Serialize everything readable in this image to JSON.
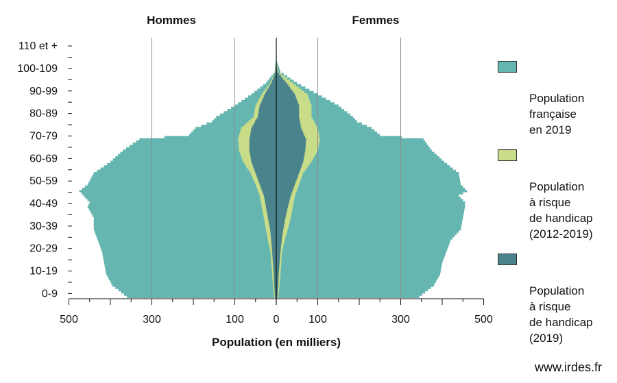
{
  "chart_data": {
    "type": "population-pyramid",
    "panel_titles": {
      "left": "Hommes",
      "right": "Femmes"
    },
    "xlabel": "Population (en milliers)",
    "x_ticks": [
      {
        "value": -500,
        "label": "500"
      },
      {
        "value": -300,
        "label": "300"
      },
      {
        "value": -100,
        "label": "100"
      },
      {
        "value": 0,
        "label": "0"
      },
      {
        "value": 100,
        "label": "100"
      },
      {
        "value": 300,
        "label": "300"
      },
      {
        "value": 500,
        "label": "500"
      }
    ],
    "xlim": [
      -500,
      500
    ],
    "ylim": [
      0,
      115
    ],
    "y_ticks": [
      {
        "value": 0,
        "label": "0-9"
      },
      {
        "value": 10,
        "label": "10-19"
      },
      {
        "value": 20,
        "label": "20-29"
      },
      {
        "value": 30,
        "label": "30-39"
      },
      {
        "value": 40,
        "label": "40-49"
      },
      {
        "value": 50,
        "label": "50-59"
      },
      {
        "value": 60,
        "label": "60-69"
      },
      {
        "value": 70,
        "label": "70-79"
      },
      {
        "value": 80,
        "label": "80-89"
      },
      {
        "value": 90,
        "label": "90-99"
      },
      {
        "value": 100,
        "label": "100-109"
      },
      {
        "value": 110,
        "label": "110 et +"
      }
    ],
    "gridlines_x": [
      -300,
      -100,
      100,
      300
    ],
    "series": [
      {
        "name": "Population française en 2019",
        "color": "#65b6b0",
        "men": [
          {
            "age": 0,
            "value": 360
          },
          {
            "age": 5,
            "value": 395
          },
          {
            "age": 10,
            "value": 410
          },
          {
            "age": 15,
            "value": 415
          },
          {
            "age": 20,
            "value": 420
          },
          {
            "age": 25,
            "value": 430
          },
          {
            "age": 30,
            "value": 440
          },
          {
            "age": 35,
            "value": 440
          },
          {
            "age": 40,
            "value": 455
          },
          {
            "age": 42,
            "value": 450
          },
          {
            "age": 45,
            "value": 465
          },
          {
            "age": 47,
            "value": 475
          },
          {
            "age": 50,
            "value": 455
          },
          {
            "age": 55,
            "value": 440
          },
          {
            "age": 60,
            "value": 400
          },
          {
            "age": 65,
            "value": 370
          },
          {
            "age": 70,
            "value": 330
          },
          {
            "age": 72,
            "value": 210
          },
          {
            "age": 75,
            "value": 195
          },
          {
            "age": 78,
            "value": 155
          },
          {
            "age": 80,
            "value": 145
          },
          {
            "age": 85,
            "value": 100
          },
          {
            "age": 90,
            "value": 60
          },
          {
            "age": 95,
            "value": 25
          },
          {
            "age": 100,
            "value": 4
          },
          {
            "age": 105,
            "value": 1
          },
          {
            "age": 110,
            "value": 0.5
          }
        ],
        "women": [
          {
            "age": 0,
            "value": 345
          },
          {
            "age": 5,
            "value": 380
          },
          {
            "age": 10,
            "value": 395
          },
          {
            "age": 15,
            "value": 400
          },
          {
            "age": 20,
            "value": 410
          },
          {
            "age": 25,
            "value": 420
          },
          {
            "age": 30,
            "value": 445
          },
          {
            "age": 35,
            "value": 450
          },
          {
            "age": 40,
            "value": 455
          },
          {
            "age": 42,
            "value": 455
          },
          {
            "age": 45,
            "value": 440
          },
          {
            "age": 47,
            "value": 460
          },
          {
            "age": 50,
            "value": 445
          },
          {
            "age": 55,
            "value": 440
          },
          {
            "age": 60,
            "value": 405
          },
          {
            "age": 65,
            "value": 375
          },
          {
            "age": 70,
            "value": 355
          },
          {
            "age": 72,
            "value": 250
          },
          {
            "age": 75,
            "value": 230
          },
          {
            "age": 78,
            "value": 195
          },
          {
            "age": 80,
            "value": 185
          },
          {
            "age": 85,
            "value": 150
          },
          {
            "age": 90,
            "value": 100
          },
          {
            "age": 95,
            "value": 50
          },
          {
            "age": 100,
            "value": 10
          },
          {
            "age": 105,
            "value": 1.5
          },
          {
            "age": 110,
            "value": 0.5
          }
        ]
      },
      {
        "name": "Population à risque de handicap (2012-2019)",
        "color": "#c9dd89",
        "men": [
          {
            "age": 0,
            "value": 5
          },
          {
            "age": 5,
            "value": 8
          },
          {
            "age": 10,
            "value": 10
          },
          {
            "age": 15,
            "value": 12
          },
          {
            "age": 20,
            "value": 14
          },
          {
            "age": 25,
            "value": 20
          },
          {
            "age": 30,
            "value": 25
          },
          {
            "age": 35,
            "value": 30
          },
          {
            "age": 40,
            "value": 35
          },
          {
            "age": 45,
            "value": 40
          },
          {
            "age": 50,
            "value": 50
          },
          {
            "age": 55,
            "value": 62
          },
          {
            "age": 60,
            "value": 80
          },
          {
            "age": 65,
            "value": 90
          },
          {
            "age": 70,
            "value": 92
          },
          {
            "age": 75,
            "value": 85
          },
          {
            "age": 80,
            "value": 55
          },
          {
            "age": 85,
            "value": 50
          },
          {
            "age": 90,
            "value": 35
          },
          {
            "age": 95,
            "value": 15
          },
          {
            "age": 100,
            "value": 3
          },
          {
            "age": 105,
            "value": 0.5
          },
          {
            "age": 110,
            "value": 0.2
          }
        ],
        "women": [
          {
            "age": 0,
            "value": 5
          },
          {
            "age": 5,
            "value": 8
          },
          {
            "age": 10,
            "value": 10
          },
          {
            "age": 15,
            "value": 12
          },
          {
            "age": 20,
            "value": 14
          },
          {
            "age": 25,
            "value": 20
          },
          {
            "age": 30,
            "value": 28
          },
          {
            "age": 35,
            "value": 35
          },
          {
            "age": 40,
            "value": 40
          },
          {
            "age": 45,
            "value": 45
          },
          {
            "age": 50,
            "value": 55
          },
          {
            "age": 55,
            "value": 65
          },
          {
            "age": 60,
            "value": 85
          },
          {
            "age": 65,
            "value": 100
          },
          {
            "age": 70,
            "value": 105
          },
          {
            "age": 75,
            "value": 100
          },
          {
            "age": 80,
            "value": 85
          },
          {
            "age": 85,
            "value": 85
          },
          {
            "age": 90,
            "value": 75
          },
          {
            "age": 95,
            "value": 40
          },
          {
            "age": 100,
            "value": 5
          },
          {
            "age": 105,
            "value": 1
          },
          {
            "age": 110,
            "value": 0.2
          }
        ]
      },
      {
        "name": "Population à risque de handicap (2019)",
        "color": "#4a838c",
        "men": [
          {
            "age": 0,
            "value": 3
          },
          {
            "age": 5,
            "value": 5
          },
          {
            "age": 10,
            "value": 6
          },
          {
            "age": 15,
            "value": 8
          },
          {
            "age": 20,
            "value": 10
          },
          {
            "age": 25,
            "value": 12
          },
          {
            "age": 30,
            "value": 15
          },
          {
            "age": 35,
            "value": 20
          },
          {
            "age": 40,
            "value": 25
          },
          {
            "age": 45,
            "value": 30
          },
          {
            "age": 50,
            "value": 40
          },
          {
            "age": 55,
            "value": 50
          },
          {
            "age": 60,
            "value": 60
          },
          {
            "age": 65,
            "value": 65
          },
          {
            "age": 70,
            "value": 65
          },
          {
            "age": 75,
            "value": 60
          },
          {
            "age": 80,
            "value": 45
          },
          {
            "age": 85,
            "value": 40
          },
          {
            "age": 90,
            "value": 28
          },
          {
            "age": 95,
            "value": 12
          },
          {
            "age": 100,
            "value": 2
          },
          {
            "age": 105,
            "value": 0.5
          },
          {
            "age": 110,
            "value": 0.2
          }
        ],
        "women": [
          {
            "age": 0,
            "value": 3
          },
          {
            "age": 5,
            "value": 5
          },
          {
            "age": 10,
            "value": 6
          },
          {
            "age": 15,
            "value": 8
          },
          {
            "age": 20,
            "value": 10
          },
          {
            "age": 25,
            "value": 13
          },
          {
            "age": 30,
            "value": 17
          },
          {
            "age": 35,
            "value": 22
          },
          {
            "age": 40,
            "value": 28
          },
          {
            "age": 45,
            "value": 35
          },
          {
            "age": 50,
            "value": 45
          },
          {
            "age": 55,
            "value": 55
          },
          {
            "age": 60,
            "value": 65
          },
          {
            "age": 65,
            "value": 70
          },
          {
            "age": 70,
            "value": 72
          },
          {
            "age": 75,
            "value": 60
          },
          {
            "age": 80,
            "value": 55
          },
          {
            "age": 85,
            "value": 55
          },
          {
            "age": 90,
            "value": 45
          },
          {
            "age": 95,
            "value": 25
          },
          {
            "age": 100,
            "value": 3
          },
          {
            "age": 105,
            "value": 0.5
          },
          {
            "age": 110,
            "value": 0.2
          }
        ]
      }
    ]
  },
  "legend": [
    {
      "label": "Population\nfrançaise\nen 2019",
      "color": "#65b6b0"
    },
    {
      "label": "Population\nà risque\nde handicap\n(2012-2019)",
      "color": "#c9dd89"
    },
    {
      "label": "Population\nà risque\nde handicap\n(2019)",
      "color": "#4a838c"
    }
  ],
  "source": "www.irdes.fr"
}
